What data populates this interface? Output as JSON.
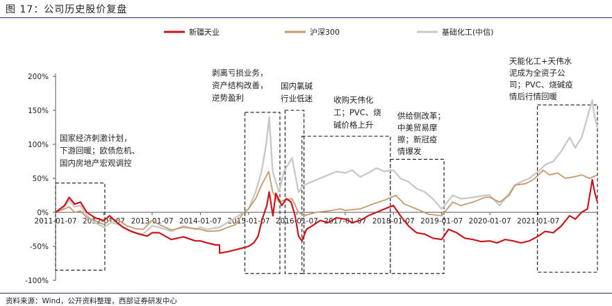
{
  "figure": {
    "title": "图 17：公司历史股价复盘",
    "source": "资料来源：Wind，公开资料整理，西部证券研发中心"
  },
  "colors": {
    "series_red": "#c8161d",
    "series_tan": "#c49a6c",
    "series_gray": "#c9c9c9",
    "box": "#111111",
    "rule": "#1f2f66"
  },
  "chart_data": {
    "type": "line",
    "title": "",
    "xlabel": "",
    "ylabel": "",
    "ylim": [
      -100,
      200
    ],
    "y_ticks": [
      -100,
      -50,
      0,
      50,
      100,
      150,
      200
    ],
    "y_tick_labels": [
      "-100%",
      "-50%",
      "0%",
      "50%",
      "100%",
      "150%",
      "200%"
    ],
    "x_ticks": [
      "2011-01-07",
      "2012-01-07",
      "2013-01-07",
      "2014-01-07",
      "2015-01-07",
      "2016-01-07",
      "2017-01-07",
      "2018-01-07",
      "2019-01-07",
      "2020-01-07",
      "2021-01-07"
    ],
    "x_range": [
      "2011-01-07",
      "2022-03-31"
    ],
    "legend_position": "top-center",
    "series": [
      {
        "name": "新疆天业",
        "color": "#c8161d",
        "points": [
          [
            "2011-01-07",
            0
          ],
          [
            "2011-03-15",
            10
          ],
          [
            "2011-04-20",
            22
          ],
          [
            "2011-06-01",
            12
          ],
          [
            "2011-07-15",
            15
          ],
          [
            "2011-09-01",
            0
          ],
          [
            "2011-11-01",
            -8
          ],
          [
            "2012-01-07",
            -12
          ],
          [
            "2012-02-20",
            -5
          ],
          [
            "2012-04-15",
            -15
          ],
          [
            "2012-06-01",
            -22
          ],
          [
            "2012-08-01",
            -28
          ],
          [
            "2012-10-01",
            -32
          ],
          [
            "2012-12-01",
            -35
          ],
          [
            "2013-01-07",
            -30
          ],
          [
            "2013-03-01",
            -30
          ],
          [
            "2013-06-01",
            -40
          ],
          [
            "2013-09-01",
            -36
          ],
          [
            "2013-12-01",
            -42
          ],
          [
            "2014-01-07",
            -42
          ],
          [
            "2014-03-01",
            -45
          ],
          [
            "2014-05-01",
            -48
          ],
          [
            "2014-06-01",
            -48
          ],
          [
            "2014-06-02",
            -60
          ],
          [
            "2014-08-01",
            -58
          ],
          [
            "2014-10-01",
            -55
          ],
          [
            "2014-12-01",
            -52
          ],
          [
            "2015-01-07",
            -50
          ],
          [
            "2015-02-15",
            -45
          ],
          [
            "2015-03-20",
            -35
          ],
          [
            "2015-04-20",
            -10
          ],
          [
            "2015-05-25",
            10
          ],
          [
            "2015-06-12",
            30
          ],
          [
            "2015-07-10",
            -5
          ],
          [
            "2015-08-01",
            28
          ],
          [
            "2015-09-15",
            10
          ],
          [
            "2015-10-20",
            20
          ],
          [
            "2015-11-25",
            15
          ],
          [
            "2015-12-25",
            -5
          ],
          [
            "2016-01-20",
            -35
          ],
          [
            "2016-02-15",
            -42
          ],
          [
            "2016-03-20",
            -25
          ],
          [
            "2016-05-01",
            -20
          ],
          [
            "2016-07-01",
            -12
          ],
          [
            "2016-09-01",
            -15
          ],
          [
            "2016-11-01",
            -8
          ],
          [
            "2017-01-07",
            -10
          ],
          [
            "2017-03-01",
            -15
          ],
          [
            "2017-05-01",
            -12
          ],
          [
            "2017-07-01",
            -5
          ],
          [
            "2017-09-01",
            0
          ],
          [
            "2017-11-01",
            5
          ],
          [
            "2018-01-07",
            10
          ],
          [
            "2018-03-01",
            -5
          ],
          [
            "2018-05-01",
            -20
          ],
          [
            "2018-07-01",
            -30
          ],
          [
            "2018-09-01",
            -32
          ],
          [
            "2018-11-01",
            -38
          ],
          [
            "2019-01-07",
            -40
          ],
          [
            "2019-03-01",
            -25
          ],
          [
            "2019-05-01",
            -30
          ],
          [
            "2019-07-01",
            -38
          ],
          [
            "2019-09-01",
            -40
          ],
          [
            "2019-11-01",
            -43
          ],
          [
            "2020-01-07",
            -42
          ],
          [
            "2020-03-01",
            -45
          ],
          [
            "2020-05-01",
            -40
          ],
          [
            "2020-07-01",
            -42
          ],
          [
            "2020-09-01",
            -45
          ],
          [
            "2020-11-01",
            -42
          ],
          [
            "2021-01-07",
            -35
          ],
          [
            "2021-03-01",
            -28
          ],
          [
            "2021-05-01",
            -30
          ],
          [
            "2021-07-01",
            -20
          ],
          [
            "2021-09-01",
            -5
          ],
          [
            "2021-10-15",
            -10
          ],
          [
            "2021-12-01",
            0
          ],
          [
            "2022-01-15",
            5
          ],
          [
            "2022-02-20",
            48
          ],
          [
            "2022-03-10",
            30
          ],
          [
            "2022-03-31",
            15
          ]
        ]
      },
      {
        "name": "沪深300",
        "color": "#c49a6c",
        "points": [
          [
            "2011-01-07",
            0
          ],
          [
            "2011-03-15",
            5
          ],
          [
            "2011-04-20",
            8
          ],
          [
            "2011-06-01",
            0
          ],
          [
            "2011-07-15",
            2
          ],
          [
            "2011-09-01",
            -8
          ],
          [
            "2011-11-01",
            -12
          ],
          [
            "2012-01-07",
            -18
          ],
          [
            "2012-03-01",
            -10
          ],
          [
            "2012-05-01",
            -12
          ],
          [
            "2012-07-01",
            -20
          ],
          [
            "2012-09-01",
            -24
          ],
          [
            "2012-11-01",
            -25
          ],
          [
            "2013-01-07",
            -12
          ],
          [
            "2013-03-01",
            -18
          ],
          [
            "2013-06-01",
            -26
          ],
          [
            "2013-09-01",
            -22
          ],
          [
            "2013-12-01",
            -24
          ],
          [
            "2014-01-07",
            -25
          ],
          [
            "2014-03-01",
            -28
          ],
          [
            "2014-06-01",
            -27
          ],
          [
            "2014-08-01",
            -22
          ],
          [
            "2014-10-01",
            -18
          ],
          [
            "2014-12-01",
            0
          ],
          [
            "2015-01-07",
            5
          ],
          [
            "2015-03-01",
            20
          ],
          [
            "2015-04-15",
            40
          ],
          [
            "2015-06-08",
            60
          ],
          [
            "2015-07-08",
            30
          ],
          [
            "2015-08-25",
            15
          ],
          [
            "2015-10-01",
            18
          ],
          [
            "2015-12-01",
            20
          ],
          [
            "2016-01-20",
            0
          ],
          [
            "2016-03-01",
            -5
          ],
          [
            "2016-06-01",
            0
          ],
          [
            "2016-09-01",
            2
          ],
          [
            "2016-12-01",
            5
          ],
          [
            "2017-01-07",
            3
          ],
          [
            "2017-05-01",
            5
          ],
          [
            "2017-08-01",
            12
          ],
          [
            "2017-11-01",
            18
          ],
          [
            "2018-01-25",
            25
          ],
          [
            "2018-04-01",
            12
          ],
          [
            "2018-07-01",
            5
          ],
          [
            "2018-10-01",
            -3
          ],
          [
            "2019-01-07",
            -5
          ],
          [
            "2019-04-01",
            15
          ],
          [
            "2019-06-01",
            10
          ],
          [
            "2019-09-01",
            15
          ],
          [
            "2019-12-01",
            22
          ],
          [
            "2020-01-07",
            22
          ],
          [
            "2020-03-20",
            15
          ],
          [
            "2020-06-01",
            25
          ],
          [
            "2020-07-15",
            40
          ],
          [
            "2020-10-01",
            42
          ],
          [
            "2020-12-01",
            48
          ],
          [
            "2021-02-15",
            62
          ],
          [
            "2021-04-01",
            55
          ],
          [
            "2021-06-01",
            58
          ],
          [
            "2021-08-01",
            50
          ],
          [
            "2021-10-01",
            52
          ],
          [
            "2021-12-01",
            55
          ],
          [
            "2022-02-01",
            50
          ],
          [
            "2022-03-31",
            55
          ]
        ]
      },
      {
        "name": "基础化工(中信)",
        "color": "#c9c9c9",
        "points": [
          [
            "2011-01-07",
            0
          ],
          [
            "2011-03-15",
            8
          ],
          [
            "2011-04-20",
            18
          ],
          [
            "2011-06-01",
            8
          ],
          [
            "2011-07-15",
            10
          ],
          [
            "2011-09-01",
            -5
          ],
          [
            "2011-11-01",
            -15
          ],
          [
            "2012-01-07",
            -22
          ],
          [
            "2012-03-01",
            -15
          ],
          [
            "2012-05-01",
            -18
          ],
          [
            "2012-07-01",
            -25
          ],
          [
            "2012-09-01",
            -30
          ],
          [
            "2012-11-01",
            -32
          ],
          [
            "2013-01-07",
            -20
          ],
          [
            "2013-03-01",
            -22
          ],
          [
            "2013-06-01",
            -28
          ],
          [
            "2013-09-01",
            -20
          ],
          [
            "2013-12-01",
            -25
          ],
          [
            "2014-01-07",
            -22
          ],
          [
            "2014-03-01",
            -25
          ],
          [
            "2014-06-01",
            -22
          ],
          [
            "2014-08-01",
            -15
          ],
          [
            "2014-10-01",
            -8
          ],
          [
            "2014-12-01",
            0
          ],
          [
            "2015-01-07",
            5
          ],
          [
            "2015-03-01",
            30
          ],
          [
            "2015-04-15",
            60
          ],
          [
            "2015-05-20",
            100
          ],
          [
            "2015-06-12",
            140
          ],
          [
            "2015-07-08",
            60
          ],
          [
            "2015-08-25",
            30
          ],
          [
            "2015-10-01",
            60
          ],
          [
            "2015-12-01",
            80
          ],
          [
            "2016-01-20",
            30
          ],
          [
            "2016-03-01",
            40
          ],
          [
            "2016-05-01",
            45
          ],
          [
            "2016-07-01",
            50
          ],
          [
            "2016-09-01",
            55
          ],
          [
            "2016-11-01",
            60
          ],
          [
            "2017-01-07",
            58
          ],
          [
            "2017-03-01",
            62
          ],
          [
            "2017-05-01",
            52
          ],
          [
            "2017-07-01",
            58
          ],
          [
            "2017-09-01",
            65
          ],
          [
            "2017-11-01",
            60
          ],
          [
            "2018-01-07",
            62
          ],
          [
            "2018-03-01",
            50
          ],
          [
            "2018-05-01",
            45
          ],
          [
            "2018-07-01",
            35
          ],
          [
            "2018-09-01",
            30
          ],
          [
            "2018-11-01",
            20
          ],
          [
            "2019-01-07",
            5
          ],
          [
            "2019-04-01",
            25
          ],
          [
            "2019-06-01",
            20
          ],
          [
            "2019-09-01",
            22
          ],
          [
            "2019-12-01",
            25
          ],
          [
            "2020-01-07",
            25
          ],
          [
            "2020-03-20",
            10
          ],
          [
            "2020-05-01",
            20
          ],
          [
            "2020-07-15",
            40
          ],
          [
            "2020-09-01",
            45
          ],
          [
            "2020-11-01",
            50
          ],
          [
            "2021-01-07",
            60
          ],
          [
            "2021-03-01",
            70
          ],
          [
            "2021-05-01",
            75
          ],
          [
            "2021-07-01",
            90
          ],
          [
            "2021-09-01",
            110
          ],
          [
            "2021-10-15",
            95
          ],
          [
            "2021-12-01",
            110
          ],
          [
            "2022-01-15",
            140
          ],
          [
            "2022-02-20",
            165
          ],
          [
            "2022-03-10",
            140
          ],
          [
            "2022-03-31",
            125
          ]
        ]
      }
    ],
    "annotations": [
      {
        "lines": [
          "国家经济刺激计划，",
          "下游回暖；欧债危机、",
          "国内房地产宏观调控"
        ],
        "box": [
          "2011-01-07",
          "2012-01-15",
          -85,
          43
        ]
      },
      {
        "lines": [
          "剥离亏损业务，",
          "资产结构改善，",
          "逆势盈利"
        ],
        "box": [
          "2014-12-10",
          "2015-09-01",
          -90,
          147
        ]
      },
      {
        "lines": [
          "国内氯碱",
          "行业低迷"
        ],
        "box": [
          "2015-10-10",
          "2016-03-01",
          -90,
          150
        ]
      },
      {
        "lines": [
          "收购天伟化",
          "工；PVC、烧",
          "碱价格上升"
        ],
        "box": [
          "2016-02-15",
          "2017-12-15",
          -90,
          112
        ]
      },
      {
        "lines": [
          "供给侧改革；",
          "中美贸易摩",
          "擦；新冠疫",
          "情爆发"
        ],
        "box": [
          "2017-12-15",
          "2019-01-25",
          -90,
          78
        ]
      },
      {
        "lines": [
          "天能化工+天伟水",
          "泥成为全资子公",
          "司；PVC、烧碱疫",
          "情后行情回暖"
        ],
        "box": [
          "2021-01-01",
          "2022-03-31",
          -88,
          158
        ]
      }
    ]
  }
}
